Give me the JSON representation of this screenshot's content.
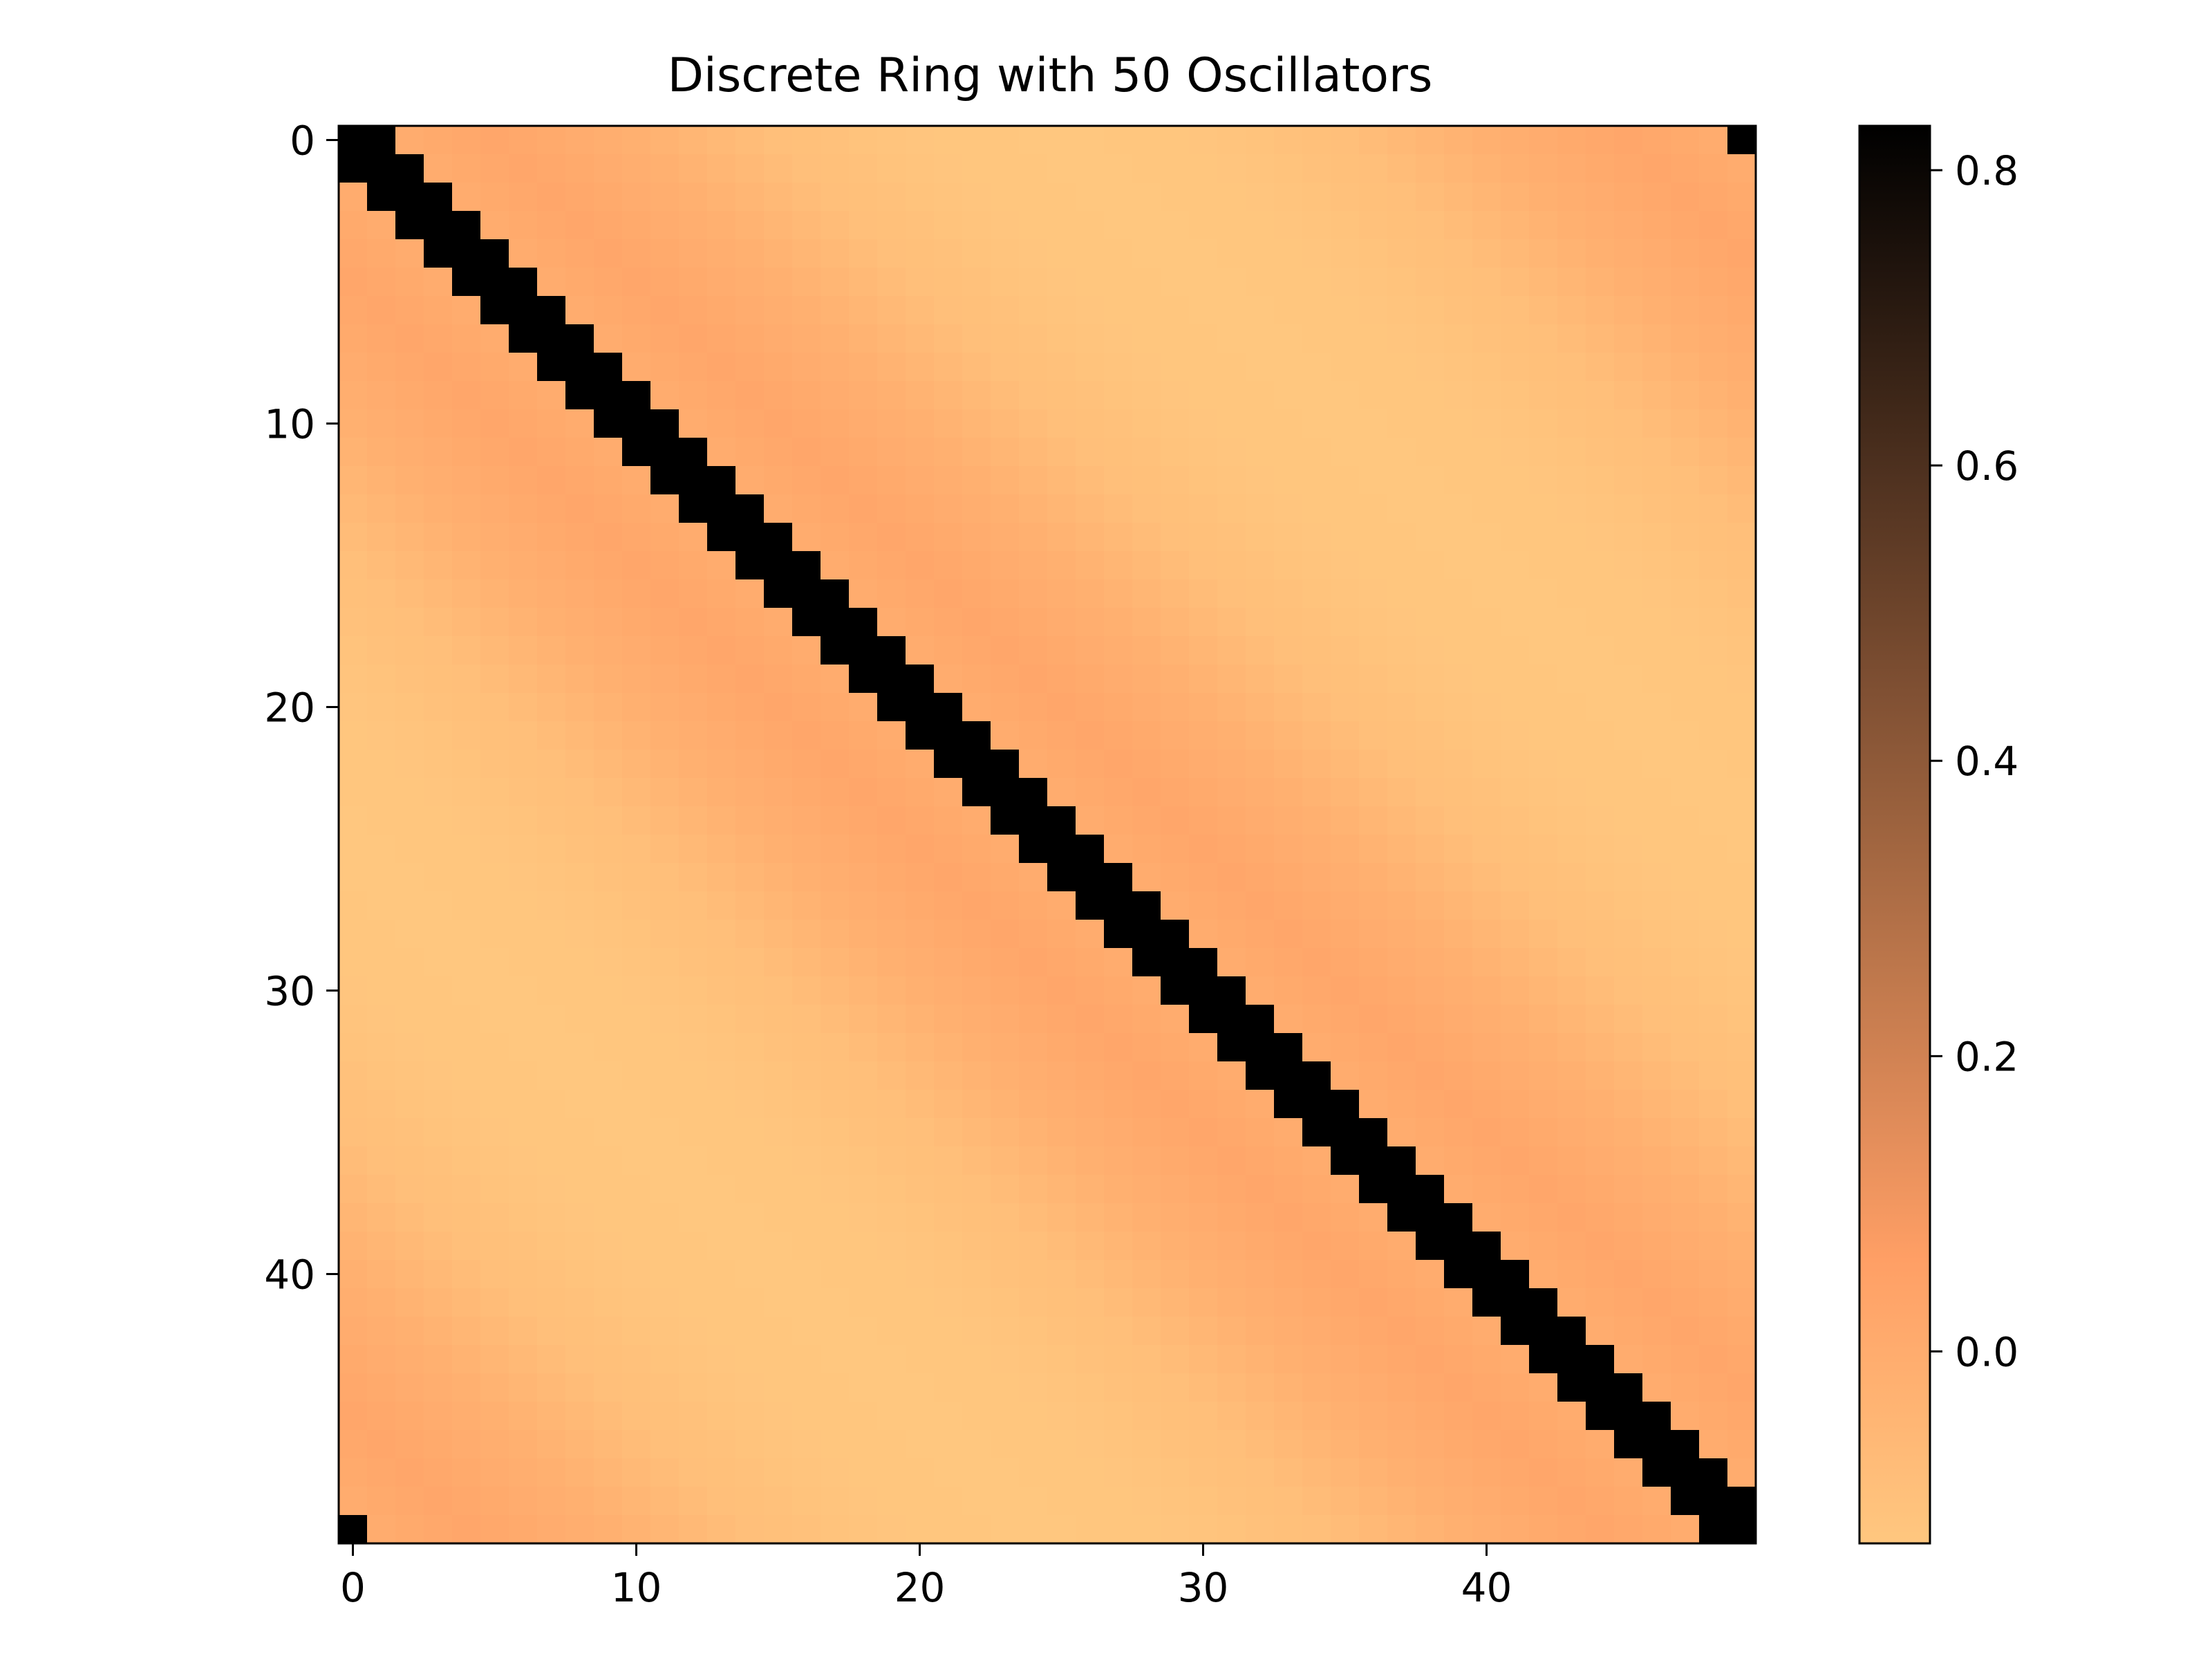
{
  "chart_data": {
    "type": "heatmap",
    "title": "Discrete Ring with 50 Oscillators",
    "xlabel": "",
    "ylabel": "",
    "n": 50,
    "x_ticks": [
      0,
      10,
      20,
      30,
      40
    ],
    "y_ticks": [
      0,
      10,
      20,
      30,
      40
    ],
    "x_tick_labels": [
      "0",
      "10",
      "20",
      "30",
      "40"
    ],
    "y_tick_labels": [
      "0",
      "10",
      "20",
      "30",
      "40"
    ],
    "colormap": "copper_r",
    "colorbar": {
      "range": [
        -0.13,
        0.83
      ],
      "ticks": [
        0.0,
        0.2,
        0.4,
        0.6,
        0.8
      ],
      "tick_labels": [
        "0.0",
        "0.2",
        "0.4",
        "0.6",
        "0.8"
      ],
      "low_color": "#ffc77f",
      "high_color": "#000000"
    },
    "structure": {
      "description_of_values": "symmetric circulant matrix: value depends on ring distance d = min(|i-j|, 50-|i-j|)",
      "value_by_ring_distance": {
        "d0": 0.83,
        "d1": 0.83,
        "d2": 0.0,
        "d5": 0.03,
        "d10": -0.02,
        "d15": -0.09,
        "d20": -0.12,
        "d25": -0.13
      },
      "diagonal_band_width": 2
    },
    "grid": false,
    "legend": "none"
  }
}
